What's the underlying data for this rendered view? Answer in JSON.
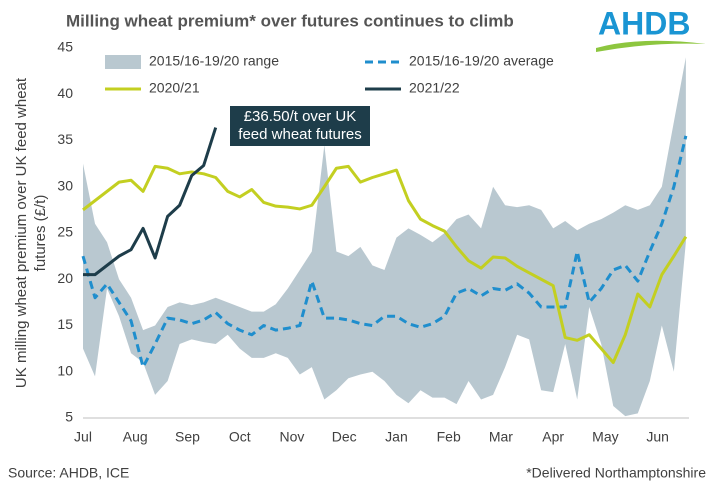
{
  "chart_data": {
    "type": "line",
    "title": "Milling wheat premium* over futures continues to climb",
    "logo": "AHDB",
    "y_label": [
      "UK milling wheat premium over UK feed wheat",
      "futures (£/t)"
    ],
    "source": "Source: AHDB, ICE",
    "footnote": "*Delivered Northamptonshire",
    "annotation": [
      "£36.50/t over UK",
      "feed wheat futures"
    ],
    "x": [
      0,
      0.23,
      0.46,
      0.69,
      0.92,
      1.15,
      1.38,
      1.62,
      1.85,
      2.08,
      2.31,
      2.54,
      2.77,
      3,
      3.23,
      3.46,
      3.69,
      3.92,
      4.15,
      4.38,
      4.62,
      4.85,
      5.08,
      5.31,
      5.54,
      5.77,
      6,
      6.23,
      6.46,
      6.69,
      6.92,
      7.15,
      7.38,
      7.62,
      7.85,
      8.08,
      8.31,
      8.54,
      8.77,
      9,
      9.23,
      9.46,
      9.69,
      9.92,
      10.15,
      10.38,
      10.62,
      10.85,
      11.08,
      11.31,
      11.54
    ],
    "xlim": [
      0,
      11.6
    ],
    "xticks": [
      {
        "value": 0,
        "label": "Jul"
      },
      {
        "value": 1,
        "label": "Aug"
      },
      {
        "value": 2,
        "label": "Sep"
      },
      {
        "value": 3,
        "label": "Oct"
      },
      {
        "value": 4,
        "label": "Nov"
      },
      {
        "value": 5,
        "label": "Dec"
      },
      {
        "value": 6,
        "label": "Jan"
      },
      {
        "value": 7,
        "label": "Feb"
      },
      {
        "value": 8,
        "label": "Mar"
      },
      {
        "value": 9,
        "label": "Apr"
      },
      {
        "value": 10,
        "label": "May"
      },
      {
        "value": 11,
        "label": "Jun"
      }
    ],
    "ylim": [
      5,
      45
    ],
    "yticks": [
      5,
      10,
      15,
      20,
      25,
      30,
      35,
      40,
      45
    ],
    "series": [
      {
        "name": "2015/16-19/20 range",
        "color": "#b9c8d0",
        "style": "band",
        "upper": [
          32.5,
          26,
          24,
          20,
          18,
          14.5,
          15,
          17,
          17.5,
          17.2,
          17.5,
          18,
          17.5,
          17,
          16.5,
          16.5,
          17.3,
          19,
          21,
          23,
          34.5,
          23,
          22.5,
          23.5,
          21.5,
          21,
          24.5,
          25.5,
          24.8,
          24,
          25,
          26.5,
          27,
          25.5,
          30,
          28,
          27.8,
          28,
          27.5,
          25.5,
          26.3,
          25.3,
          26,
          26.5,
          27.2,
          28,
          27.5,
          28,
          30,
          37,
          44
        ],
        "lower": [
          12.5,
          9.5,
          19,
          16,
          12,
          11,
          7.5,
          9,
          13,
          13.5,
          13.2,
          13,
          14,
          12.5,
          11.5,
          11.5,
          12,
          11.5,
          9.7,
          10.5,
          7,
          8,
          9.3,
          9.7,
          10,
          9,
          7.5,
          6.6,
          8,
          7.2,
          7.2,
          6.5,
          9,
          7,
          7.5,
          10.5,
          14,
          13.5,
          8,
          7.8,
          13,
          7,
          17,
          13,
          6.3,
          5.2,
          5.5,
          9,
          15,
          10,
          24
        ]
      },
      {
        "name": "2015/16-19/20 average",
        "color": "#1f8ecd",
        "style": "dashed",
        "values": [
          22.5,
          18,
          19.5,
          17.5,
          15.5,
          10.5,
          13,
          15.8,
          15.6,
          15.2,
          15.6,
          16.4,
          15.2,
          14.5,
          14,
          15,
          14.5,
          14.7,
          15,
          19.8,
          15.8,
          15.8,
          15.6,
          15.2,
          15,
          16,
          16,
          15.2,
          14.8,
          15.2,
          16,
          18.5,
          19,
          18.2,
          19,
          18.8,
          19.5,
          18.5,
          17,
          17,
          17,
          23,
          17.5,
          19,
          21,
          21.5,
          19.8,
          23,
          26,
          30,
          35.5
        ]
      },
      {
        "name": "2020/21",
        "color": "#c3cf21",
        "style": "solid",
        "values": [
          27.5,
          28.5,
          29.5,
          30.5,
          30.7,
          29.5,
          32.2,
          32,
          31.4,
          31.6,
          31.4,
          31,
          29.5,
          28.9,
          29.7,
          28.3,
          27.9,
          27.8,
          27.6,
          28,
          30,
          32,
          32.2,
          30.5,
          31,
          31.4,
          31.8,
          28.5,
          26.5,
          25.8,
          25.2,
          23.5,
          22,
          21.2,
          22.4,
          22.3,
          21.4,
          20.7,
          20,
          19.3,
          13.7,
          13.4,
          14,
          12.5,
          11,
          14,
          18.4,
          17,
          20.5,
          22.5,
          24.6
        ]
      },
      {
        "name": "2021/22",
        "color": "#1e3d4a",
        "style": "solid",
        "values": [
          20.5,
          20.5,
          21.5,
          22.5,
          23.2,
          25.5,
          22.3,
          26.8,
          28,
          31.2,
          32.3,
          36.4,
          null,
          null,
          null,
          null,
          null,
          null,
          null,
          null,
          null,
          null,
          null,
          null,
          null,
          null,
          null,
          null,
          null,
          null,
          null,
          null,
          null,
          null,
          null,
          null,
          null,
          null,
          null,
          null,
          null,
          null,
          null,
          null,
          null,
          null,
          null,
          null,
          null,
          null,
          null
        ]
      }
    ]
  }
}
